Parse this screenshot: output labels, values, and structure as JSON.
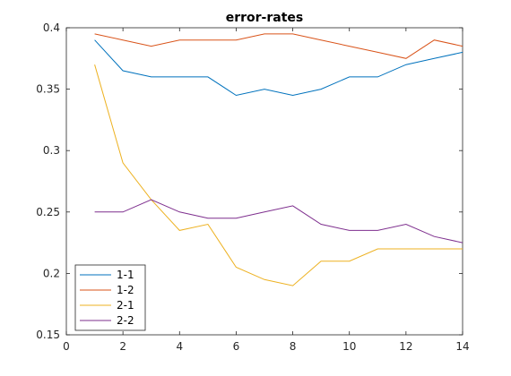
{
  "chart_data": {
    "type": "line",
    "title": "error-rates",
    "xlabel": "",
    "ylabel": "",
    "xlim": [
      0,
      14
    ],
    "ylim": [
      0.15,
      0.4
    ],
    "xticks": [
      0,
      2,
      4,
      6,
      8,
      10,
      12,
      14
    ],
    "yticks": [
      0.15,
      0.2,
      0.25,
      0.3,
      0.35,
      0.4
    ],
    "x": [
      1,
      2,
      3,
      4,
      5,
      6,
      7,
      8,
      9,
      10,
      11,
      12,
      13,
      14
    ],
    "grid": false,
    "legend_position": "bottom-left",
    "series": [
      {
        "name": "1-1",
        "color": "#0072BD",
        "values": [
          0.39,
          0.365,
          0.36,
          0.36,
          0.36,
          0.345,
          0.35,
          0.345,
          0.35,
          0.36,
          0.36,
          0.37,
          0.375,
          0.38
        ]
      },
      {
        "name": "1-2",
        "color": "#D95319",
        "values": [
          0.395,
          0.39,
          0.385,
          0.39,
          0.39,
          0.39,
          0.395,
          0.395,
          0.39,
          0.385,
          0.38,
          0.375,
          0.39,
          0.385
        ]
      },
      {
        "name": "2-1",
        "color": "#EDB120",
        "values": [
          0.37,
          0.29,
          0.26,
          0.235,
          0.24,
          0.205,
          0.195,
          0.19,
          0.21,
          0.21,
          0.22,
          0.22,
          0.22,
          0.22
        ]
      },
      {
        "name": "2-2",
        "color": "#7E2F8E",
        "values": [
          0.25,
          0.25,
          0.26,
          0.25,
          0.245,
          0.245,
          0.25,
          0.255,
          0.24,
          0.235,
          0.235,
          0.24,
          0.23,
          0.225
        ]
      }
    ]
  }
}
